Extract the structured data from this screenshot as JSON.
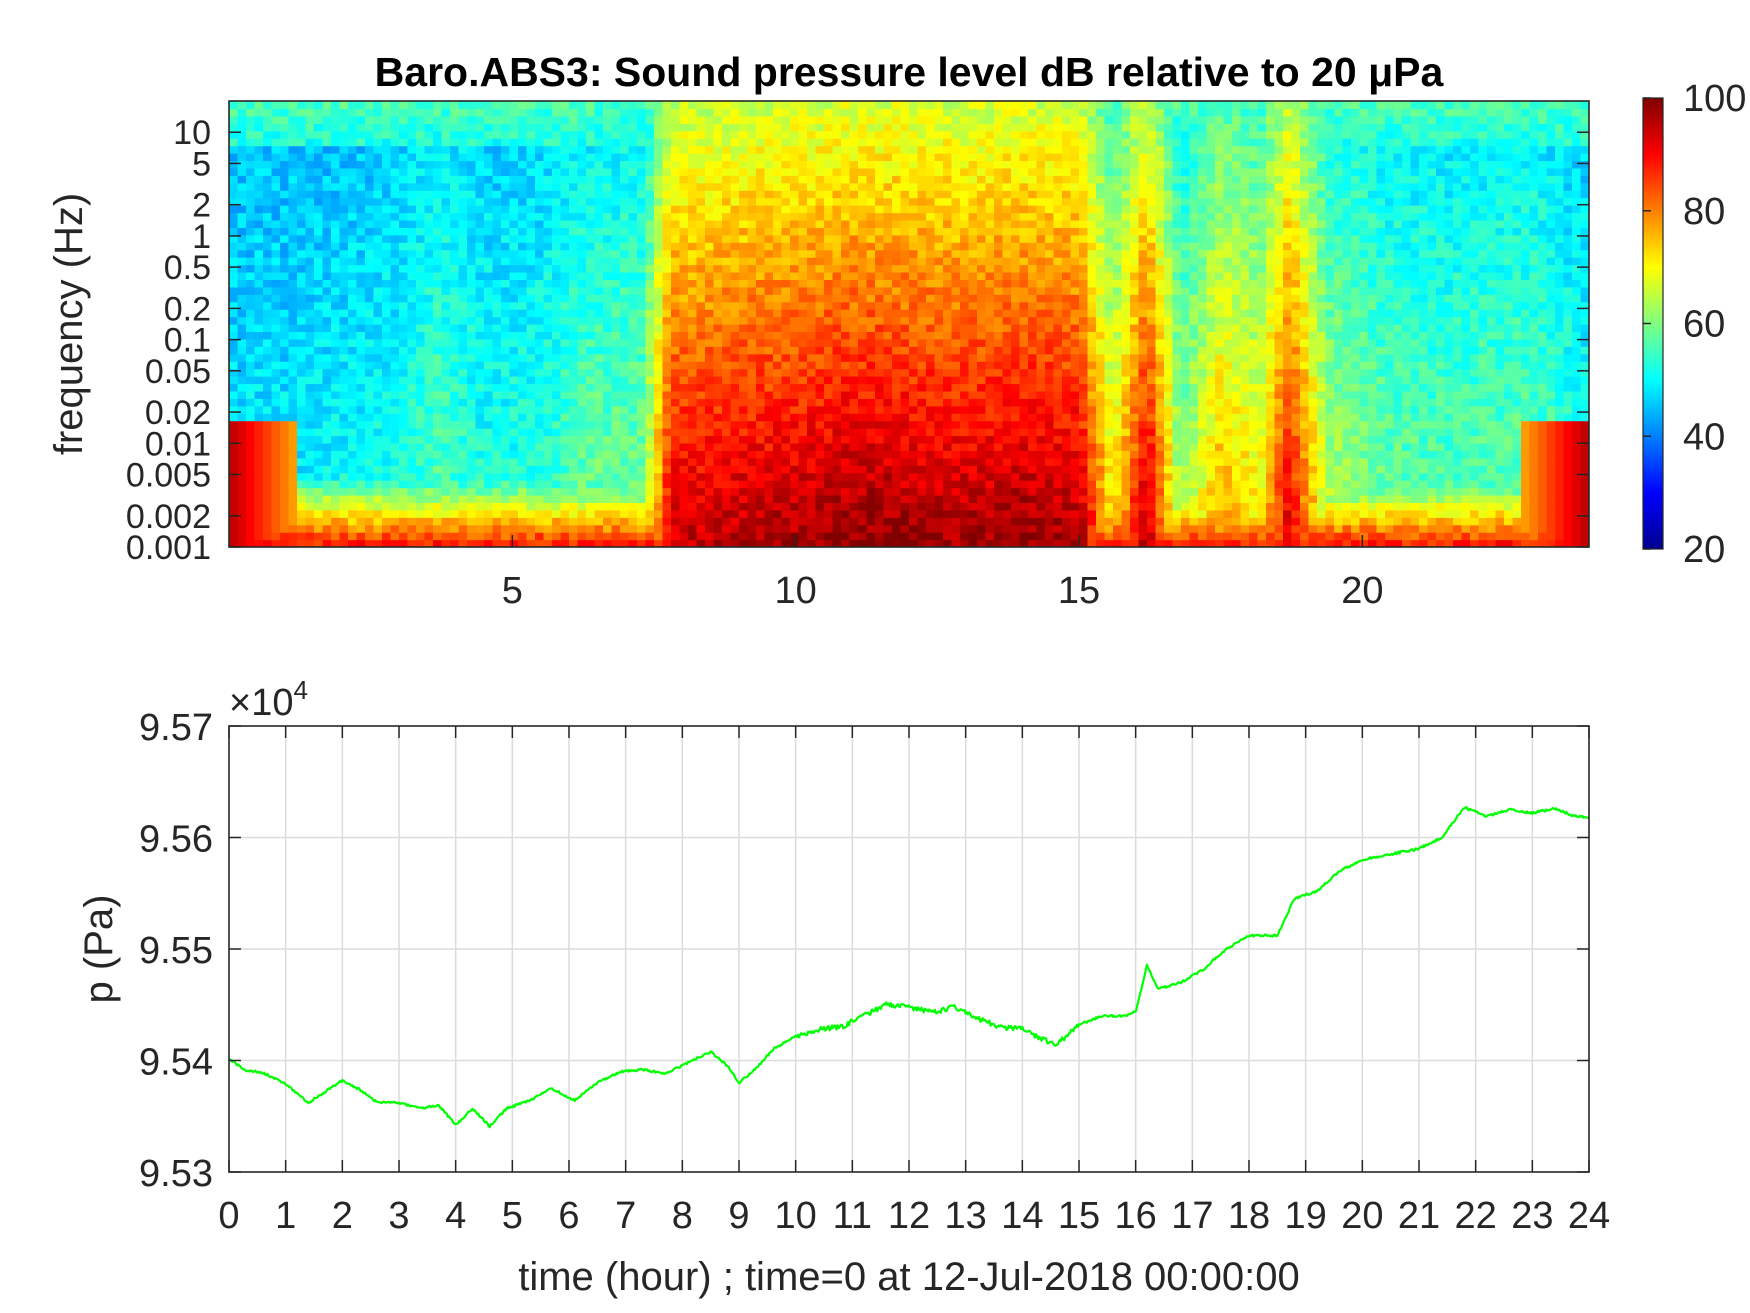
{
  "chart_data": [
    {
      "type": "heatmap",
      "title": "Baro.ABS3: Sound pressure level dB relative to 20 μPa",
      "xlabel": "",
      "ylabel": "frequency (Hz)",
      "xlim": [
        0,
        24
      ],
      "x_ticks": [
        "5",
        "10",
        "15",
        "20"
      ],
      "x_tick_values": [
        5,
        10,
        15,
        20
      ],
      "y_scale": "log",
      "ylim": [
        0.001,
        20
      ],
      "y_ticks": [
        "0.001",
        "0.002",
        "0.005",
        "0.01",
        "0.02",
        "0.05",
        "0.1",
        "0.2",
        "0.5",
        "1",
        "2",
        "5",
        "10"
      ],
      "y_tick_values": [
        0.001,
        0.002,
        0.005,
        0.01,
        0.02,
        0.05,
        0.1,
        0.2,
        0.5,
        1,
        2,
        5,
        10
      ],
      "colormap": "jet",
      "colorbar": {
        "range": [
          20,
          100
        ],
        "ticks": [
          "20",
          "40",
          "60",
          "80",
          "100"
        ],
        "tick_values": [
          20,
          40,
          60,
          80,
          100
        ],
        "placement": "right"
      },
      "activity": [
        {
          "t": 0,
          "level": 0.15
        },
        {
          "t": 1,
          "level": 0.15
        },
        {
          "t": 2,
          "level": 0.17
        },
        {
          "t": 3,
          "level": 0.2
        },
        {
          "t": 3.7,
          "level": 0.28
        },
        {
          "t": 4.5,
          "level": 0.2
        },
        {
          "t": 5.5,
          "level": 0.22
        },
        {
          "t": 6.3,
          "level": 0.3
        },
        {
          "t": 7.3,
          "level": 0.32
        },
        {
          "t": 7.8,
          "level": 0.85
        },
        {
          "t": 9,
          "level": 0.88
        },
        {
          "t": 10,
          "level": 0.9
        },
        {
          "t": 11,
          "level": 0.93
        },
        {
          "t": 12,
          "level": 0.92
        },
        {
          "t": 13,
          "level": 0.9
        },
        {
          "t": 14,
          "level": 0.92
        },
        {
          "t": 15,
          "level": 0.9
        },
        {
          "t": 15.6,
          "level": 0.5
        },
        {
          "t": 16.2,
          "level": 0.9
        },
        {
          "t": 16.8,
          "level": 0.35
        },
        {
          "t": 17.5,
          "level": 0.6
        },
        {
          "t": 18.2,
          "level": 0.5
        },
        {
          "t": 18.7,
          "level": 0.85
        },
        {
          "t": 19.4,
          "level": 0.4
        },
        {
          "t": 20.5,
          "level": 0.3
        },
        {
          "t": 21.5,
          "level": 0.28
        },
        {
          "t": 23,
          "level": 0.3
        },
        {
          "t": 24,
          "level": 0.2
        }
      ]
    },
    {
      "type": "line",
      "title": "",
      "xlabel": "time (hour) ; time=0 at 12-Jul-2018 00:00:00",
      "ylabel": "p (Pa)",
      "y_exponent_label": "×10",
      "y_exponent_power": "4",
      "xlim": [
        0,
        24
      ],
      "ylim": [
        9.53,
        9.57
      ],
      "grid": true,
      "x_ticks": [
        "0",
        "1",
        "2",
        "3",
        "4",
        "5",
        "6",
        "7",
        "8",
        "9",
        "10",
        "11",
        "12",
        "13",
        "14",
        "15",
        "16",
        "17",
        "18",
        "19",
        "20",
        "21",
        "22",
        "23",
        "24"
      ],
      "y_ticks": [
        "9.53",
        "9.54",
        "9.55",
        "9.56",
        "9.57"
      ],
      "y_tick_values": [
        9.53,
        9.54,
        9.55,
        9.56,
        9.57
      ],
      "series": [
        {
          "color": "#00ff00",
          "x": [
            0,
            0.3,
            0.6,
            1.0,
            1.4,
            1.7,
            2.0,
            2.3,
            2.6,
            3.0,
            3.4,
            3.7,
            4.0,
            4.3,
            4.6,
            4.9,
            5.3,
            5.7,
            6.1,
            6.5,
            6.9,
            7.3,
            7.7,
            8.1,
            8.5,
            8.8,
            9.0,
            9.3,
            9.6,
            10.0,
            10.4,
            10.8,
            11.2,
            11.6,
            12.0,
            12.4,
            12.8,
            13.2,
            13.6,
            14.0,
            14.4,
            14.6,
            15.0,
            15.4,
            15.8,
            16.0,
            16.2,
            16.4,
            16.8,
            17.2,
            17.6,
            18.0,
            18.5,
            18.8,
            19.2,
            19.6,
            20.0,
            20.5,
            21.0,
            21.4,
            21.8,
            22.2,
            22.6,
            23.0,
            23.4,
            23.7,
            24.0
          ],
          "y": [
            9.5401,
            9.5391,
            9.5389,
            9.5379,
            9.5362,
            9.5372,
            9.5382,
            9.5374,
            9.5363,
            9.5362,
            9.5357,
            9.536,
            9.5342,
            9.5357,
            9.5341,
            9.5357,
            9.5364,
            9.5375,
            9.5364,
            9.538,
            9.539,
            9.5392,
            9.5388,
            9.5398,
            9.5408,
            9.5395,
            9.538,
            9.5393,
            9.541,
            9.5422,
            9.5428,
            9.543,
            9.544,
            9.545,
            9.5448,
            9.5443,
            9.5448,
            9.5438,
            9.543,
            9.5428,
            9.5418,
            9.5414,
            9.5432,
            9.544,
            9.544,
            9.5444,
            9.5485,
            9.5464,
            9.547,
            9.5482,
            9.55,
            9.5512,
            9.5512,
            9.5545,
            9.5552,
            9.557,
            9.558,
            9.5585,
            9.559,
            9.56,
            9.5627,
            9.5619,
            9.5625,
            9.5622,
            9.5626,
            9.562,
            9.5618
          ]
        }
      ]
    }
  ]
}
